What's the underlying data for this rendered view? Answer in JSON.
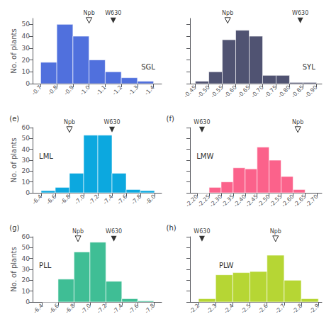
{
  "chart_data": [
    {
      "type": "histogram",
      "title": "SGL",
      "ylabel": "No. of plants",
      "bins": [
        -0.7,
        -0.8,
        -0.9,
        -1.0,
        -1.1,
        -1.2,
        -1.3,
        -1.4
      ],
      "values": [
        18,
        50,
        40,
        20,
        10,
        5,
        2
      ],
      "xlim": [
        -0.65,
        -1.45
      ],
      "xticks": [
        -0.7,
        -0.8,
        -0.9,
        {
          "value": -1.0,
          "label": "-1.0"
        },
        -1.1,
        -1.2,
        -1.3,
        -1.4
      ],
      "ylim": [
        0,
        55
      ],
      "yticks": [
        0,
        10,
        20,
        30,
        40,
        50
      ],
      "grid": false,
      "annotations": [
        {
          "text": "Npb",
          "x": -1.0,
          "marker": "triangle-down-open"
        },
        {
          "text": "W630",
          "x": -1.15,
          "marker": "triangle-down"
        }
      ]
    },
    {
      "type": "histogram",
      "title": "SYL",
      "tick_labels": "x",
      "bins": [
        -0.45,
        -0.5,
        -0.55,
        -0.6,
        -0.65,
        -0.7,
        -0.75,
        -0.8,
        -0.85,
        -0.9
      ],
      "values": [
        2,
        10,
        37,
        45,
        40,
        7,
        7,
        1,
        1
      ],
      "xlim": [
        -0.43,
        -0.92
      ],
      "xticks": [
        -0.45,
        {
          "value": -0.5,
          "label": "-0.50"
        },
        -0.55,
        {
          "value": -0.6,
          "label": "-0.60"
        },
        -0.65,
        {
          "value": -0.7,
          "label": "-0.70"
        },
        -0.75,
        {
          "value": -0.8,
          "label": "-0.80"
        },
        -0.85,
        {
          "value": -0.9,
          "label": "-0.90"
        }
      ],
      "ylim": [
        0,
        55
      ],
      "yticks": [
        0,
        10,
        20,
        30,
        40,
        50
      ],
      "grid": false,
      "annotations": [
        {
          "text": "Npb",
          "x": -0.57,
          "marker": "triangle-down-open"
        },
        {
          "text": "W630",
          "x": -0.84,
          "marker": "triangle-down"
        }
      ]
    },
    {
      "type": "histogram",
      "title": "LML",
      "subtitle": "(e)",
      "ylabel": "No. of plants",
      "bins": [
        -6.4,
        -6.6,
        -6.8,
        -7.0,
        -7.2,
        -7.4,
        -7.6,
        -7.8,
        -8.0
      ],
      "values": [
        2,
        5,
        18,
        53,
        53,
        18,
        3,
        2
      ],
      "xlim": [
        -6.28,
        -8.1
      ],
      "xticks": [
        -6.4,
        -6.6,
        -6.8,
        {
          "value": -7.0,
          "label": "-7.0"
        },
        -7.2,
        -7.4,
        -7.6,
        -7.8,
        {
          "value": -8.0,
          "label": "-8.0"
        }
      ],
      "ylim": [
        0,
        60
      ],
      "yticks": [
        0,
        10,
        20,
        30,
        40,
        50,
        60
      ],
      "grid": false,
      "annotations": [
        {
          "text": "Npb",
          "x": -6.8,
          "marker": "triangle-down-open"
        },
        {
          "text": "W630",
          "x": -7.4,
          "marker": "triangle-down"
        }
      ]
    },
    {
      "type": "histogram",
      "title": "LMW",
      "subtitle": "(f)",
      "tick_labels": "x",
      "bins": [
        -2.2,
        -2.25,
        -2.3,
        -2.35,
        -2.4,
        -2.45,
        -2.5,
        -2.55,
        -2.6,
        -2.65
      ],
      "values": [
        0,
        5,
        10,
        23,
        22,
        42,
        30,
        15,
        3
      ],
      "xlim": [
        -2.17,
        -2.72
      ],
      "xticks": [
        {
          "value": -2.2,
          "label": "-2.20"
        },
        -2.25,
        {
          "value": -2.3,
          "label": "-2.30"
        },
        -2.35,
        {
          "value": -2.4,
          "label": "-2.40"
        },
        -2.45,
        {
          "value": -2.5,
          "label": "-2.50"
        },
        -2.55,
        {
          "value": -2.6,
          "label": "-2.60"
        },
        -2.65,
        {
          "value": -2.7,
          "label": "-2.70"
        }
      ],
      "ylim": [
        0,
        60
      ],
      "yticks": [
        0,
        10,
        20,
        30,
        40,
        50,
        60
      ],
      "grid": false,
      "annotations": [
        {
          "text": "Npb",
          "x": -2.62,
          "marker": "triangle-down-open"
        },
        {
          "text": "W630",
          "x": -2.22,
          "marker": "triangle-down"
        }
      ]
    },
    {
      "type": "histogram",
      "title": "PLL",
      "subtitle": "(g)",
      "ylabel": "No. of plants",
      "bins": [
        -6.4,
        -6.6,
        -6.8,
        -7.0,
        -7.2,
        -7.4,
        -7.6,
        -7.8
      ],
      "values": [
        0,
        21,
        46,
        55,
        19,
        3,
        1
      ],
      "xlim": [
        -6.28,
        -7.9
      ],
      "xticks": [
        -6.4,
        -6.6,
        -6.8,
        {
          "value": -7.0,
          "label": "-7.0"
        },
        -7.2,
        -7.4,
        -7.6,
        -7.8
      ],
      "ylim": [
        0,
        60
      ],
      "yticks": [
        0,
        10,
        20,
        30,
        40,
        50,
        60
      ],
      "grid": false,
      "annotations": [
        {
          "text": "Npb",
          "x": -6.85,
          "marker": "triangle-down-open"
        },
        {
          "text": "W630",
          "x": -7.3,
          "marker": "triangle-down"
        }
      ]
    },
    {
      "type": "histogram",
      "title": "PLW",
      "subtitle": "(h)",
      "tick_labels": "x",
      "bins": [
        -2.2,
        -2.3,
        -2.4,
        -2.5,
        -2.6,
        -2.7,
        -2.8,
        -2.9
      ],
      "values": [
        3,
        25,
        27,
        28,
        43,
        20,
        3
      ],
      "xlim": [
        -2.15,
        -2.92
      ],
      "xticks": [
        -2.2,
        -2.3,
        -2.4,
        -2.5,
        -2.6,
        -2.7,
        -2.8,
        -2.9
      ],
      "ylim": [
        0,
        60
      ],
      "yticks": [
        0,
        10,
        20,
        30,
        40,
        50,
        60
      ],
      "grid": false,
      "annotations": [
        {
          "text": "Npb",
          "x": -2.65,
          "marker": "triangle-down-open"
        },
        {
          "text": "W630",
          "x": -2.22,
          "marker": "triangle-down"
        }
      ]
    }
  ]
}
